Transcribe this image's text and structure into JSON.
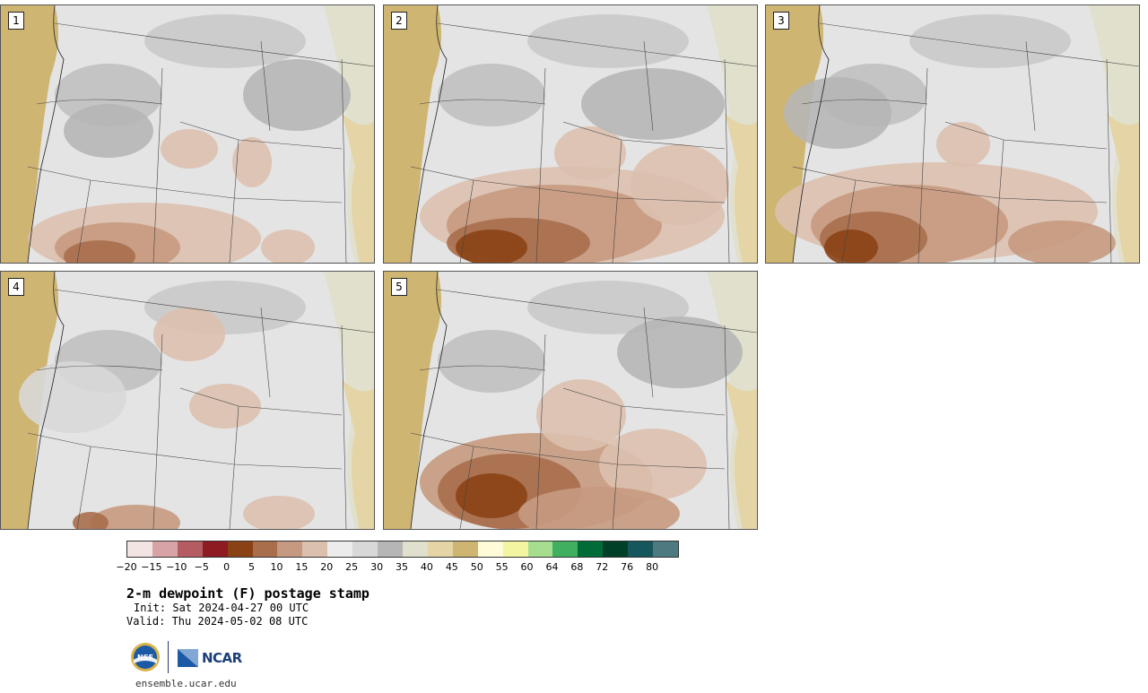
{
  "panels": [
    {
      "label": "1"
    },
    {
      "label": "2"
    },
    {
      "label": "3"
    },
    {
      "label": "4"
    },
    {
      "label": "5"
    }
  ],
  "colorbar": {
    "ticks": [
      "−20",
      "−15",
      "−10",
      "−5",
      "0",
      "5",
      "10",
      "15",
      "20",
      "25",
      "30",
      "35",
      "40",
      "45",
      "50",
      "55",
      "60",
      "64",
      "68",
      "72",
      "76",
      "80"
    ],
    "colors": [
      "#f3e4e4",
      "#d8a3a6",
      "#b45c62",
      "#8e1a22",
      "#8a4214",
      "#a96e4c",
      "#c69a80",
      "#dcc0ae",
      "#ececec",
      "#d8d8d8",
      "#b6b6b6",
      "#e0e0cc",
      "#e4d4a6",
      "#cfb572",
      "#fdfbd8",
      "#f4f5a0",
      "#a6dd8e",
      "#40b060",
      "#006c38",
      "#004028",
      "#15575c",
      "#4d7a80"
    ]
  },
  "title": "2-m dewpoint (F) postage stamp",
  "init": "Init: Sat 2024-04-27 00 UTC",
  "valid": "Valid: Thu 2024-05-02 08 UTC",
  "logos": {
    "nsf": "NSF",
    "ncar": "NCAR"
  },
  "url": "ensemble.ucar.edu"
}
